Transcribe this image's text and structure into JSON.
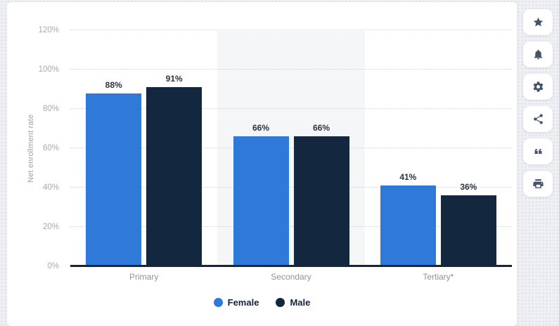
{
  "chart_data": {
    "type": "bar",
    "title": "",
    "categories": [
      "Primary",
      "Secondary",
      "Tertiary*"
    ],
    "series": [
      {
        "name": "Female",
        "color": "#2f7ad8",
        "values": [
          88,
          66,
          41
        ]
      },
      {
        "name": "Male",
        "color": "#13283e",
        "values": [
          91,
          66,
          36
        ]
      }
    ],
    "xlabel": "",
    "ylabel": "Net enrollment rate",
    "ylim": [
      0,
      120
    ],
    "ytick_step": 20,
    "ytick_suffix": "%",
    "data_label_suffix": "%",
    "grid": true,
    "gridline_style": "dotted",
    "legend_position": "bottom",
    "highlight_band": {
      "category": "Secondary",
      "color": "#f5f6f8"
    },
    "colors": {
      "female": "#2f7ad8",
      "male": "#13283e",
      "axis_line": "#17243a",
      "gridline": "#c9d5de",
      "tick_label": "#a4a9b3",
      "category_label": "#8d939c",
      "value_label": "#2a3442",
      "legend_text": "#16243a",
      "card_background": "#ffffff",
      "page_background": "#eef0f4",
      "toolbar_icon": "#46536b"
    }
  },
  "toolbar": {
    "buttons": [
      {
        "name": "favorite",
        "icon": "star-icon"
      },
      {
        "name": "alerts",
        "icon": "bell-icon"
      },
      {
        "name": "settings",
        "icon": "gear-icon"
      },
      {
        "name": "share",
        "icon": "share-icon"
      },
      {
        "name": "cite",
        "icon": "quote-icon"
      },
      {
        "name": "print",
        "icon": "print-icon"
      }
    ]
  }
}
